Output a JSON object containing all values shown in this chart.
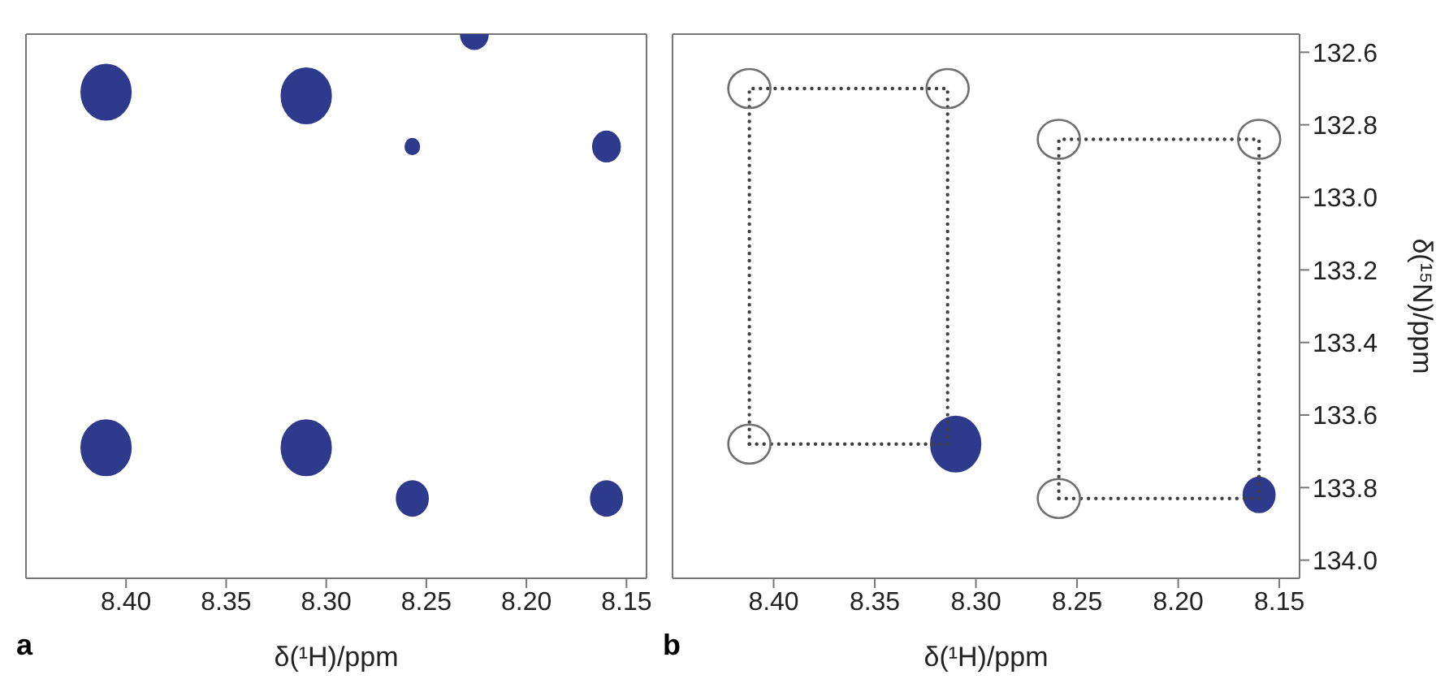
{
  "chart_data": [
    {
      "type": "bubble",
      "xlabel": "δ(¹H)/ppm",
      "annotations": [
        "a"
      ],
      "tick_labels": "x",
      "xlim": [
        8.45,
        8.14
      ],
      "xticks": [
        {
          "value": 8.4,
          "label": "8.40"
        },
        8.35,
        {
          "value": 8.3,
          "label": "8.30"
        },
        8.25,
        {
          "value": 8.2,
          "label": "8.20"
        },
        8.15
      ],
      "ylim": [
        134.05,
        132.55
      ],
      "series": [
        {
          "color": "#2e3a8c",
          "x": [
            8.41,
            8.31,
            8.257,
            8.16,
            8.41,
            8.31,
            8.257,
            8.16,
            8.226
          ],
          "values": [
            132.71,
            132.72,
            132.86,
            132.86,
            133.69,
            133.69,
            133.83,
            133.83,
            132.55
          ],
          "sizes": [
            1,
            1,
            0.08,
            0.3,
            1,
            1,
            0.4,
            0.4,
            0.3
          ]
        }
      ]
    },
    {
      "type": "scatter",
      "xlabel": "δ(¹H)/ppm",
      "ylabel": "δ(¹⁵N)/ppm",
      "annotations": [
        "b"
      ],
      "xlim": [
        8.45,
        8.14
      ],
      "xticks": [
        {
          "value": 8.4,
          "label": "8.40"
        },
        8.35,
        {
          "value": 8.3,
          "label": "8.30"
        },
        8.25,
        {
          "value": 8.2,
          "label": "8.20"
        },
        8.15
      ],
      "ylim": [
        134.05,
        132.55
      ],
      "yticks": [
        132.6,
        132.8,
        {
          "value": 133,
          "label": "133.0"
        },
        133.2,
        133.4,
        133.6,
        133.8,
        {
          "value": 134,
          "label": "134.0"
        }
      ],
      "series": [
        {
          "type": "line",
          "color": "#404040",
          "line_style": "dotted",
          "marker": "none",
          "x": [
            8.412,
            8.412,
            8.314,
            8.314
          ],
          "values": [
            133.68,
            132.7,
            132.7,
            133.68
          ]
        },
        {
          "type": "line",
          "color": "#404040",
          "line_style": "dotted",
          "marker": "none",
          "x": [
            8.412,
            8.314
          ],
          "values": [
            133.68,
            133.68
          ]
        },
        {
          "type": "line",
          "color": "#404040",
          "line_style": "dotted",
          "marker": "none",
          "x": [
            8.259,
            8.259,
            8.16,
            8.16
          ],
          "values": [
            133.83,
            132.84,
            132.84,
            133.83
          ]
        },
        {
          "type": "line",
          "color": "#404040",
          "line_style": "dotted",
          "marker": "none",
          "x": [
            8.259,
            8.16
          ],
          "values": [
            133.83,
            133.83
          ]
        },
        {
          "type": "bubble",
          "color": "#2e3a8c",
          "x": [
            8.31,
            8.16
          ],
          "values": [
            133.68,
            133.82
          ],
          "sizes": [
            1,
            0.4
          ]
        },
        {
          "color": "#707070",
          "marker": "circle",
          "x": [
            8.412,
            8.314,
            8.259,
            8.16,
            8.412,
            8.259
          ],
          "values": [
            132.7,
            132.7,
            132.84,
            132.84,
            133.68,
            133.83
          ]
        }
      ]
    }
  ]
}
